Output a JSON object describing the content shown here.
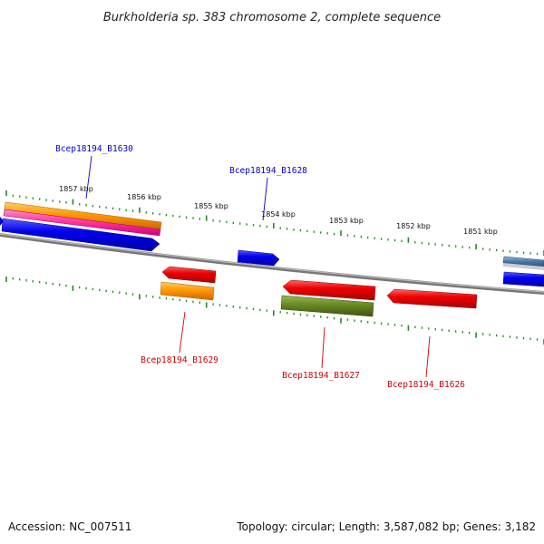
{
  "title": "Burkholderia sp. 383 chromosome 2, complete sequence",
  "footer": {
    "accession": "Accession: NC_007511",
    "summary": "Topology: circular; Length: 3,587,082 bp; Genes: 3,182"
  },
  "ruler_labels": [
    "1857 kbp",
    "1856 kbp",
    "1855 kbp",
    "1854 kbp",
    "1853 kbp",
    "1852 kbp",
    "1851 kbp"
  ],
  "gene_labels": {
    "b1630": "Bcep18194_B1630",
    "b1628": "Bcep18194_B1628",
    "b1629": "Bcep18194_B1629",
    "b1627": "Bcep18194_B1627",
    "b1626": "Bcep18194_B1626"
  },
  "colors": {
    "forward_cds": "#0000ee",
    "reverse_cds": "#ee0000",
    "orange_feature": "#ff9900",
    "pink_feature": "#ff3399",
    "green_feature": "#668822",
    "tick": "#228822",
    "backbone": "#888888"
  }
}
